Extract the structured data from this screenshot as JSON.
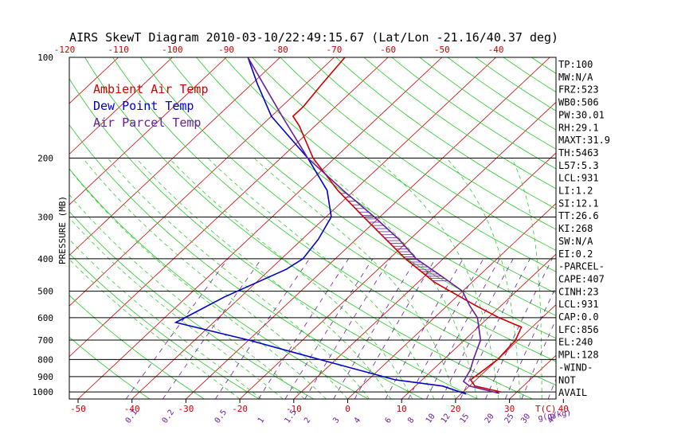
{
  "chart_data": {
    "type": "line",
    "title": "AIRS SkewT Diagram 2010-03-10/22:49:15.67 (Lat/Lon -21.16/40.37 deg)",
    "ylabel": "PRESSURE (MB)",
    "xlabel": "T(C)",
    "mixing_label": "g(g/kg)",
    "pressure_ticks": [
      100,
      200,
      300,
      400,
      500,
      600,
      700,
      800,
      900,
      1000
    ],
    "bottom_temp_ticks": [
      -50,
      -40,
      -30,
      -20,
      -10,
      0,
      10,
      20,
      30,
      40
    ],
    "top_temp_ticks": [
      -120,
      -110,
      -100,
      -90,
      -80,
      -70,
      -60,
      -50,
      -40
    ],
    "mixing_ratio_ticks": [
      "0.1",
      "0.2",
      "0.5",
      "1",
      "1.5",
      "2",
      "3",
      "4",
      "6",
      "8",
      "10",
      "12",
      "15",
      "20",
      "25",
      "30",
      "40"
    ],
    "legend": [
      {
        "label": "Ambient Air Temp",
        "color": "#d00000"
      },
      {
        "label": "Dew Point Temp",
        "color": "#0000cc"
      },
      {
        "label": "Air Parcel Temp",
        "color": "#6a1d9a"
      }
    ],
    "series": [
      {
        "name": "Ambient Air Temp",
        "color": "#d00000",
        "points": [
          [
            1000,
            27
          ],
          [
            960,
            21
          ],
          [
            920,
            19
          ],
          [
            860,
            19.5
          ],
          [
            800,
            20
          ],
          [
            700,
            19.5
          ],
          [
            640,
            18
          ],
          [
            600,
            12
          ],
          [
            550,
            5
          ],
          [
            470,
            -7
          ],
          [
            400,
            -17
          ],
          [
            300,
            -33
          ],
          [
            250,
            -43
          ],
          [
            200,
            -54
          ],
          [
            160,
            -63
          ],
          [
            150,
            -66
          ],
          [
            140,
            -66
          ],
          [
            120,
            -67
          ],
          [
            100,
            -68
          ]
        ]
      },
      {
        "name": "Dew Point Temp",
        "color": "#0000cc",
        "points": [
          [
            1015,
            21
          ],
          [
            960,
            15
          ],
          [
            920,
            5
          ],
          [
            800,
            -13
          ],
          [
            700,
            -30
          ],
          [
            620,
            -47
          ],
          [
            520,
            -43
          ],
          [
            430,
            -37
          ],
          [
            400,
            -36
          ],
          [
            350,
            -37
          ],
          [
            300,
            -39
          ],
          [
            250,
            -45
          ],
          [
            200,
            -55
          ],
          [
            150,
            -70
          ],
          [
            120,
            -79
          ],
          [
            100,
            -86
          ]
        ]
      },
      {
        "name": "Air Parcel Temp",
        "color": "#6a1d9a",
        "points": [
          [
            1010,
            27
          ],
          [
            960,
            20
          ],
          [
            930,
            18
          ],
          [
            860,
            17
          ],
          [
            800,
            15.5
          ],
          [
            700,
            13
          ],
          [
            600,
            8
          ],
          [
            550,
            4
          ],
          [
            500,
            0
          ],
          [
            450,
            -7
          ],
          [
            400,
            -15
          ],
          [
            350,
            -22
          ],
          [
            300,
            -31
          ],
          [
            250,
            -42
          ],
          [
            200,
            -55
          ],
          [
            150,
            -68
          ],
          [
            100,
            -86
          ]
        ]
      }
    ],
    "indices": [
      "TP:100",
      "MW:N/A",
      "FRZ:523",
      "WB0:506",
      "PW:30.01",
      "RH:29.1",
      "MAXT:31.9",
      "TH:5463",
      "L57:5.3",
      "LCL:931",
      "LI:1.2",
      "SI:12.1",
      "TT:26.6",
      "KI:268",
      "SW:N/A",
      "EI:0.2",
      "-PARCEL-",
      "CAPE:407",
      "CINH:23",
      "LCL:931",
      "CAP:0.0",
      "LFC:856",
      "EL:240",
      "MPL:128",
      "-WIND-",
      "NOT",
      "AVAIL"
    ]
  }
}
